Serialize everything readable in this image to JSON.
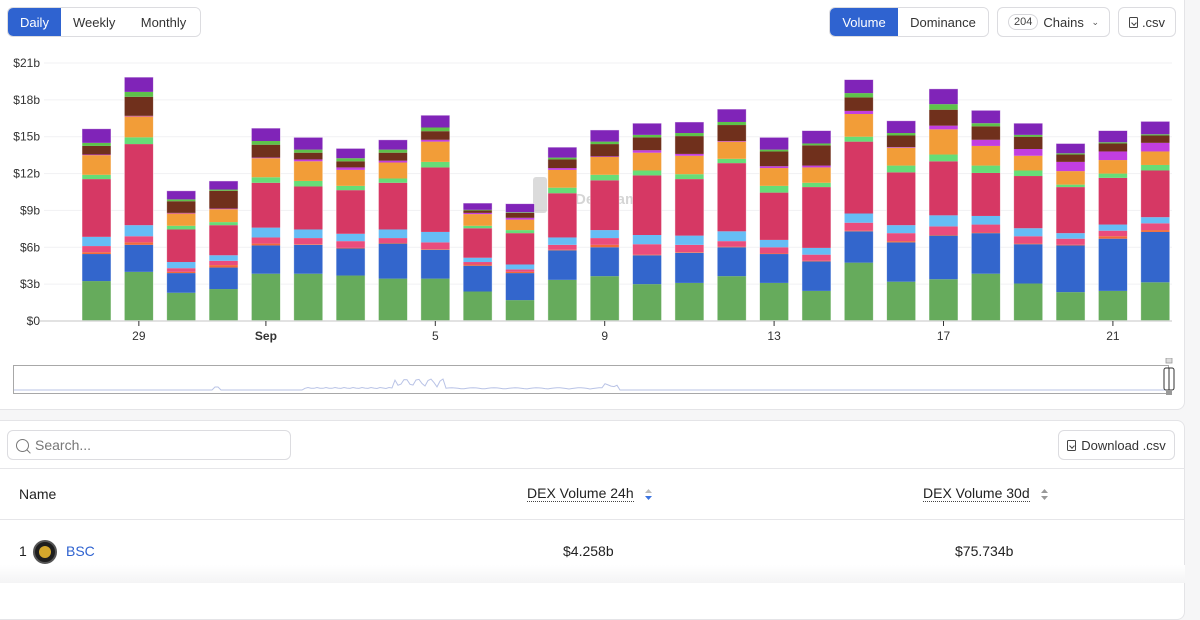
{
  "controls": {
    "period_tabs": [
      {
        "label": "Daily",
        "active": true
      },
      {
        "label": "Weekly",
        "active": false
      },
      {
        "label": "Monthly",
        "active": false
      }
    ],
    "metric_tabs": [
      {
        "label": "Volume",
        "active": true
      },
      {
        "label": "Dominance",
        "active": false
      }
    ],
    "chains_count": "204",
    "chains_label": "Chains",
    "csv_label": ".csv"
  },
  "watermark": "DefiLlama",
  "chart_data": {
    "type": "bar",
    "stacked": true,
    "title": "",
    "xlabel": "",
    "ylabel": "",
    "ylim": [
      0,
      21
    ],
    "y_ticks": [
      "$0",
      "$3b",
      "$6b",
      "$9b",
      "$12b",
      "$15b",
      "$18b",
      "$21b"
    ],
    "y_tick_values": [
      0,
      3,
      6,
      9,
      12,
      15,
      18,
      21
    ],
    "x_ticks": [
      {
        "label": "29",
        "index": 1,
        "bold": false
      },
      {
        "label": "Sep",
        "index": 4,
        "bold": true
      },
      {
        "label": "5",
        "index": 8,
        "bold": false
      },
      {
        "label": "9",
        "index": 12,
        "bold": false
      },
      {
        "label": "13",
        "index": 16,
        "bold": false
      },
      {
        "label": "17",
        "index": 20,
        "bold": false
      },
      {
        "label": "21",
        "index": 24,
        "bold": false
      }
    ],
    "categories": [
      "Aug 28",
      "Aug 29",
      "Aug 30",
      "Aug 31",
      "Sep 1",
      "Sep 2",
      "Sep 3",
      "Sep 4",
      "Sep 5",
      "Sep 6",
      "Sep 7",
      "Sep 8",
      "Sep 9",
      "Sep 10",
      "Sep 11",
      "Sep 12",
      "Sep 13",
      "Sep 14",
      "Sep 15",
      "Sep 16",
      "Sep 17",
      "Sep 18",
      "Sep 19",
      "Sep 20",
      "Sep 21",
      "Sep 22"
    ],
    "grid": true,
    "series": [
      {
        "name": "s1",
        "color": "#66ab5c",
        "values": [
          3.25,
          4.0,
          2.3,
          2.6,
          3.85,
          3.85,
          3.7,
          3.45,
          3.45,
          2.4,
          1.7,
          3.35,
          3.65,
          3.0,
          3.1,
          3.65,
          3.1,
          2.45,
          4.75,
          3.2,
          3.4,
          3.85,
          3.05,
          2.35,
          2.45,
          3.15
        ]
      },
      {
        "name": "s2",
        "color": "#3366cc",
        "values": [
          2.2,
          2.2,
          1.6,
          1.75,
          2.3,
          2.35,
          2.2,
          2.85,
          2.35,
          2.1,
          2.2,
          2.4,
          2.35,
          2.35,
          2.45,
          2.35,
          2.35,
          2.4,
          2.55,
          3.2,
          3.55,
          3.3,
          3.2,
          3.8,
          4.25,
          4.1
        ]
      },
      {
        "name": "s3",
        "color": "#f06a3a",
        "values": [
          0.15,
          0.2,
          0.1,
          0.2,
          0.15,
          0.05,
          0.05,
          0.05,
          0.05,
          0.1,
          0.1,
          0.05,
          0.2,
          0.05,
          0.05,
          0.05,
          0.05,
          0.05,
          0.05,
          0.1,
          0.05,
          0.05,
          0.05,
          0.05,
          0.2,
          0.15
        ]
      },
      {
        "name": "s4",
        "color": "#ea4c7c",
        "values": [
          0.5,
          0.5,
          0.3,
          0.35,
          0.5,
          0.5,
          0.55,
          0.4,
          0.55,
          0.2,
          0.2,
          0.4,
          0.55,
          0.85,
          0.6,
          0.45,
          0.5,
          0.5,
          0.65,
          0.65,
          0.7,
          0.65,
          0.6,
          0.5,
          0.45,
          0.55
        ]
      },
      {
        "name": "s5",
        "color": "#66bdf5",
        "values": [
          0.75,
          0.9,
          0.5,
          0.45,
          0.8,
          0.7,
          0.6,
          0.7,
          0.85,
          0.35,
          0.4,
          0.6,
          0.65,
          0.75,
          0.75,
          0.8,
          0.6,
          0.55,
          0.75,
          0.65,
          0.9,
          0.7,
          0.65,
          0.45,
          0.5,
          0.5
        ]
      },
      {
        "name": "s6",
        "color": "#d63864",
        "values": [
          4.7,
          6.6,
          2.65,
          2.45,
          3.65,
          3.5,
          3.55,
          3.8,
          5.25,
          2.4,
          2.55,
          3.6,
          4.05,
          4.85,
          4.6,
          5.55,
          3.85,
          4.95,
          5.85,
          4.3,
          4.4,
          3.5,
          4.25,
          3.75,
          3.8,
          3.8
        ]
      },
      {
        "name": "s7",
        "color": "#66dd77",
        "values": [
          0.35,
          0.55,
          0.3,
          0.25,
          0.45,
          0.45,
          0.35,
          0.35,
          0.45,
          0.2,
          0.25,
          0.45,
          0.45,
          0.4,
          0.4,
          0.35,
          0.55,
          0.35,
          0.4,
          0.55,
          0.55,
          0.6,
          0.45,
          0.2,
          0.35,
          0.45
        ]
      },
      {
        "name": "s8",
        "color": "#f29d38",
        "values": [
          1.6,
          1.7,
          1.0,
          1.05,
          1.55,
          1.6,
          1.3,
          1.3,
          1.65,
          0.95,
          0.85,
          1.45,
          1.45,
          1.45,
          1.5,
          1.4,
          1.45,
          1.25,
          1.85,
          1.45,
          2.05,
          1.6,
          1.2,
          1.1,
          1.1,
          1.1
        ]
      },
      {
        "name": "s9",
        "color": "#c23ee0",
        "values": [
          0.05,
          0.05,
          0.05,
          0.05,
          0.05,
          0.15,
          0.2,
          0.15,
          0.15,
          0.1,
          0.15,
          0.15,
          0.05,
          0.2,
          0.15,
          0.05,
          0.15,
          0.15,
          0.25,
          0.05,
          0.3,
          0.5,
          0.55,
          0.75,
          0.7,
          0.7
        ]
      },
      {
        "name": "s10",
        "color": "#70301c",
        "values": [
          0.7,
          1.55,
          0.95,
          1.45,
          1.05,
          0.55,
          0.5,
          0.65,
          0.7,
          0.2,
          0.4,
          0.7,
          1.0,
          1.05,
          1.45,
          1.3,
          1.2,
          1.65,
          1.1,
          0.95,
          1.3,
          1.1,
          1.0,
          0.6,
          0.65,
          0.6
        ]
      },
      {
        "name": "s11",
        "color": "#5ec24a",
        "values": [
          0.25,
          0.4,
          0.15,
          0.1,
          0.3,
          0.25,
          0.25,
          0.25,
          0.3,
          0.05,
          0.05,
          0.15,
          0.2,
          0.2,
          0.25,
          0.25,
          0.15,
          0.15,
          0.35,
          0.2,
          0.45,
          0.25,
          0.15,
          0.1,
          0.1,
          0.1
        ]
      },
      {
        "name": "s12",
        "color": "#8024b8",
        "values": [
          1.15,
          1.2,
          0.7,
          0.7,
          1.05,
          1.0,
          0.8,
          0.8,
          1.0,
          0.55,
          0.7,
          0.85,
          0.95,
          0.95,
          0.9,
          1.05,
          1.0,
          1.05,
          1.1,
          1.0,
          1.25,
          1.05,
          0.95,
          0.8,
          0.95,
          1.05
        ]
      }
    ],
    "minimap": {
      "label": "time-range brush",
      "selection": "last-month"
    }
  },
  "table_section": {
    "search_placeholder": "Search...",
    "download_label": "Download .csv",
    "columns": [
      {
        "label": "Name",
        "sortable": false
      },
      {
        "label": "DEX Volume 24h",
        "sortable": true,
        "sorted": "desc"
      },
      {
        "label": "DEX Volume 30d",
        "sortable": true,
        "sorted": null
      }
    ],
    "rows": [
      {
        "rank": "1",
        "name": "BSC",
        "volume_24h": "$4.258b",
        "volume_30d": "$75.734b"
      }
    ]
  }
}
